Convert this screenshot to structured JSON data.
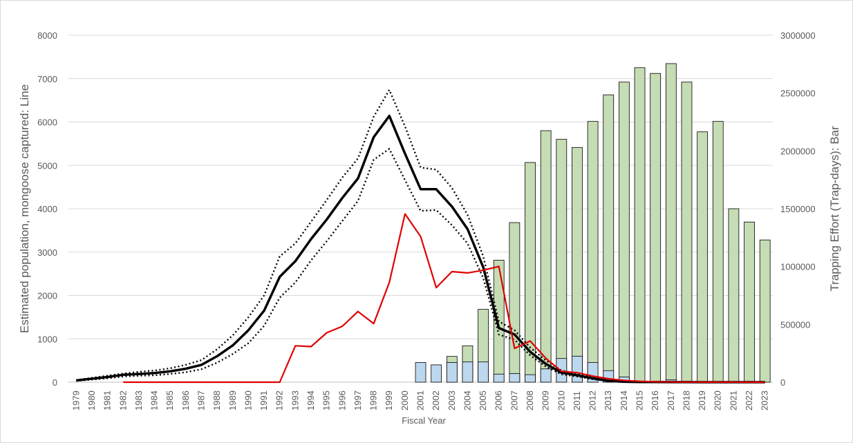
{
  "chart_data": {
    "type": "bar+line",
    "xlabel": "Fiscal Year",
    "ylabel": "Estimated population, mongoose captured: Line",
    "ylabel_right": "Trapping Effort (Trap-days): Bar",
    "ylim": [
      0,
      8000
    ],
    "ylim_right": [
      0,
      3000000
    ],
    "yticks": [
      "0",
      "1000",
      "2000",
      "3000",
      "4000",
      "5000",
      "6000",
      "7000",
      "8000"
    ],
    "yticks_right": [
      "0",
      "500000",
      "1000000",
      "1500000",
      "2000000",
      "2500000",
      "3000000"
    ],
    "grid": true,
    "categories": [
      "1979",
      "1980",
      "1981",
      "1982",
      "1983",
      "1984",
      "1985",
      "1986",
      "1987",
      "1988",
      "1989",
      "1990",
      "1991",
      "1992",
      "1993",
      "1994",
      "1995",
      "1996",
      "1997",
      "1998",
      "1999",
      "2000",
      "2001",
      "2002",
      "2003",
      "2004",
      "2005",
      "2006",
      "2007",
      "2008",
      "2009",
      "2010",
      "2011",
      "2012",
      "2013",
      "2014",
      "2015",
      "2016",
      "2017",
      "2018",
      "2019",
      "2020",
      "2021",
      "2022",
      "2023"
    ],
    "bar_series": [
      {
        "color": "#c5dcb4",
        "values": [
          null,
          null,
          null,
          null,
          null,
          null,
          null,
          null,
          null,
          null,
          null,
          null,
          null,
          null,
          null,
          null,
          null,
          null,
          null,
          null,
          null,
          null,
          null,
          null,
          223000,
          315000,
          630000,
          1055000,
          1380000,
          1900000,
          2175000,
          2100000,
          2030000,
          2255000,
          2485000,
          2595000,
          2720000,
          2670000,
          2755000,
          2595000,
          2165000,
          2255000,
          1500000,
          1385000,
          1230000
        ]
      },
      {
        "color": "#bdd7ee",
        "values": [
          null,
          null,
          null,
          null,
          null,
          null,
          null,
          null,
          null,
          null,
          null,
          null,
          null,
          null,
          null,
          null,
          null,
          null,
          null,
          null,
          null,
          null,
          170000,
          150000,
          170000,
          175000,
          175000,
          70000,
          75000,
          65000,
          115000,
          205000,
          225000,
          170000,
          100000,
          45000,
          null,
          null,
          20000,
          null,
          null,
          null,
          null,
          null,
          null
        ]
      }
    ],
    "line_series": [
      {
        "style": "solid-thick",
        "color": "#000000",
        "values": [
          40,
          80,
          120,
          170,
          190,
          210,
          250,
          310,
          400,
          600,
          850,
          1200,
          1650,
          2430,
          2790,
          3300,
          3750,
          4250,
          4700,
          5650,
          6140,
          5270,
          4450,
          4450,
          4050,
          3530,
          2650,
          1250,
          1100,
          700,
          420,
          220,
          160,
          90,
          30,
          10,
          5,
          3,
          2,
          1,
          0,
          0,
          0,
          0,
          0
        ]
      },
      {
        "style": "dotted",
        "color": "#000000",
        "values": [
          50,
          100,
          150,
          200,
          240,
          270,
          320,
          400,
          510,
          760,
          1080,
          1500,
          2000,
          2900,
          3200,
          3700,
          4200,
          4720,
          5160,
          6120,
          6740,
          5900,
          4950,
          4900,
          4480,
          3860,
          2900,
          1400,
          1200,
          800,
          500,
          270,
          200,
          110,
          40,
          15,
          8,
          4,
          3,
          2,
          0,
          0,
          0,
          0,
          0
        ]
      },
      {
        "style": "dotted",
        "color": "#000000",
        "values": [
          30,
          60,
          90,
          130,
          150,
          160,
          190,
          230,
          300,
          450,
          650,
          900,
          1300,
          1950,
          2300,
          2810,
          3250,
          3720,
          4180,
          5130,
          5380,
          4660,
          3950,
          3970,
          3620,
          3200,
          2400,
          1100,
          980,
          620,
          360,
          180,
          130,
          70,
          20,
          5,
          2,
          1,
          1,
          0,
          0,
          0,
          0,
          0,
          0
        ]
      },
      {
        "style": "solid",
        "color": "#e00000",
        "values": [
          null,
          null,
          null,
          0,
          0,
          0,
          0,
          0,
          0,
          0,
          0,
          0,
          0,
          0,
          840,
          820,
          1140,
          1290,
          1630,
          1350,
          2300,
          3880,
          3360,
          2180,
          2550,
          2520,
          2580,
          2670,
          780,
          950,
          550,
          250,
          220,
          140,
          80,
          40,
          20,
          10,
          5,
          3,
          2,
          1,
          1,
          0,
          0
        ]
      }
    ]
  }
}
